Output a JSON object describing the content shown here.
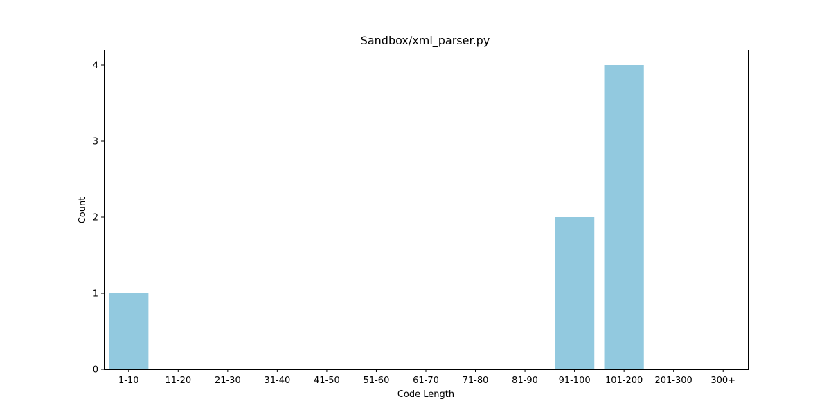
{
  "chart_data": {
    "type": "bar",
    "title": "Sandbox/xml_parser.py",
    "xlabel": "Code Length",
    "ylabel": "Count",
    "categories": [
      "1-10",
      "11-20",
      "21-30",
      "31-40",
      "41-50",
      "51-60",
      "61-70",
      "71-80",
      "81-90",
      "91-100",
      "101-200",
      "201-300",
      "300+"
    ],
    "values": [
      1,
      0,
      0,
      0,
      0,
      0,
      0,
      0,
      0,
      2,
      4,
      0,
      0
    ],
    "ylim": [
      0,
      4.2
    ],
    "yticks": [
      0,
      1,
      2,
      3,
      4
    ],
    "grid": false,
    "legend": "none",
    "bar_color": "#92c9df"
  }
}
